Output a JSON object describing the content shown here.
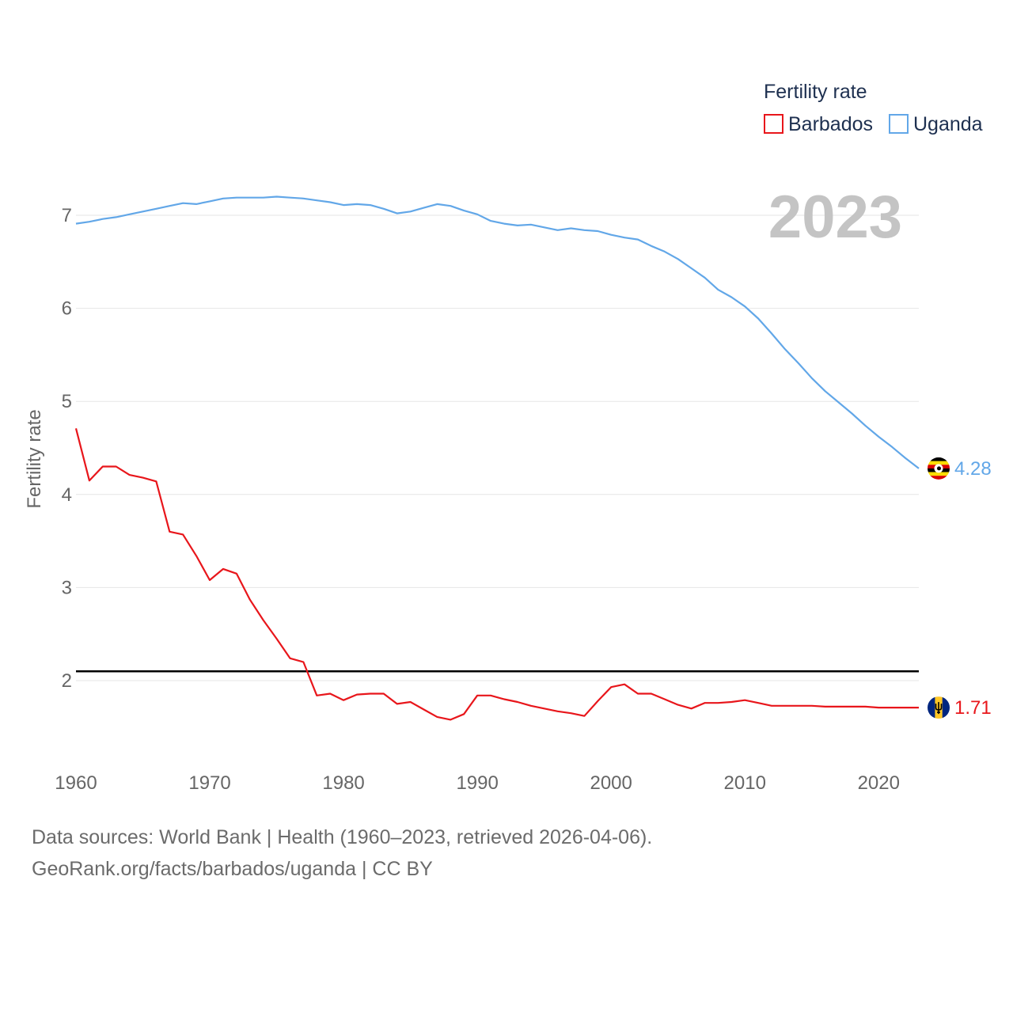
{
  "chart_data": {
    "type": "line",
    "title": "",
    "xlabel": "",
    "ylabel": "Fertility rate",
    "xlim": [
      1960,
      2023
    ],
    "ylim": [
      1.0,
      7.4
    ],
    "x_ticks": [
      "1960",
      "1970",
      "1980",
      "1990",
      "2000",
      "2010",
      "2020"
    ],
    "y_ticks": [
      "2",
      "3",
      "4",
      "5",
      "6",
      "7"
    ],
    "grid": true,
    "year_label": "2023",
    "legend": {
      "title": "Fertility rate",
      "position": "top-right",
      "entries": [
        "Barbados",
        "Uganda"
      ]
    },
    "reference_line": {
      "y": 2.1,
      "color": "#000000"
    },
    "x": [
      1960,
      1961,
      1962,
      1963,
      1964,
      1965,
      1966,
      1967,
      1968,
      1969,
      1970,
      1971,
      1972,
      1973,
      1974,
      1975,
      1976,
      1977,
      1978,
      1979,
      1980,
      1981,
      1982,
      1983,
      1984,
      1985,
      1986,
      1987,
      1988,
      1989,
      1990,
      1991,
      1992,
      1993,
      1994,
      1995,
      1996,
      1997,
      1998,
      1999,
      2000,
      2001,
      2002,
      2003,
      2004,
      2005,
      2006,
      2007,
      2008,
      2009,
      2010,
      2011,
      2012,
      2013,
      2014,
      2015,
      2016,
      2017,
      2018,
      2019,
      2020,
      2021,
      2022,
      2023
    ],
    "series": [
      {
        "name": "Barbados",
        "color": "#e8161b",
        "end_label": "1.71",
        "flag": "barbados-flag-icon",
        "values": [
          4.71,
          4.15,
          4.3,
          4.3,
          4.21,
          4.18,
          4.14,
          3.6,
          3.57,
          3.34,
          3.08,
          3.2,
          3.15,
          2.87,
          2.65,
          2.45,
          2.24,
          2.2,
          1.84,
          1.86,
          1.79,
          1.85,
          1.86,
          1.86,
          1.75,
          1.77,
          1.69,
          1.61,
          1.58,
          1.64,
          1.84,
          1.84,
          1.8,
          1.77,
          1.73,
          1.7,
          1.67,
          1.65,
          1.62,
          1.78,
          1.93,
          1.96,
          1.86,
          1.86,
          1.8,
          1.74,
          1.7,
          1.76,
          1.76,
          1.77,
          1.79,
          1.76,
          1.73,
          1.73,
          1.73,
          1.73,
          1.72,
          1.72,
          1.72,
          1.72,
          1.71,
          1.71,
          1.71,
          1.71
        ]
      },
      {
        "name": "Uganda",
        "color": "#62a7e8",
        "end_label": "4.28",
        "flag": "uganda-flag-icon",
        "values": [
          6.91,
          6.93,
          6.96,
          6.98,
          7.01,
          7.04,
          7.07,
          7.1,
          7.13,
          7.12,
          7.15,
          7.18,
          7.19,
          7.19,
          7.19,
          7.2,
          7.19,
          7.18,
          7.16,
          7.14,
          7.11,
          7.12,
          7.11,
          7.07,
          7.02,
          7.04,
          7.08,
          7.12,
          7.1,
          7.05,
          7.01,
          6.94,
          6.91,
          6.89,
          6.9,
          6.87,
          6.84,
          6.86,
          6.84,
          6.83,
          6.79,
          6.76,
          6.74,
          6.67,
          6.61,
          6.53,
          6.43,
          6.33,
          6.2,
          6.12,
          6.02,
          5.89,
          5.73,
          5.56,
          5.41,
          5.25,
          5.11,
          4.99,
          4.87,
          4.74,
          4.62,
          4.51,
          4.39,
          4.28
        ]
      }
    ]
  },
  "footer": {
    "line1": "Data sources: World Bank | Health (1960–2023, retrieved 2026-04-06).",
    "line2": "GeoRank.org/facts/barbados/uganda | CC BY"
  }
}
